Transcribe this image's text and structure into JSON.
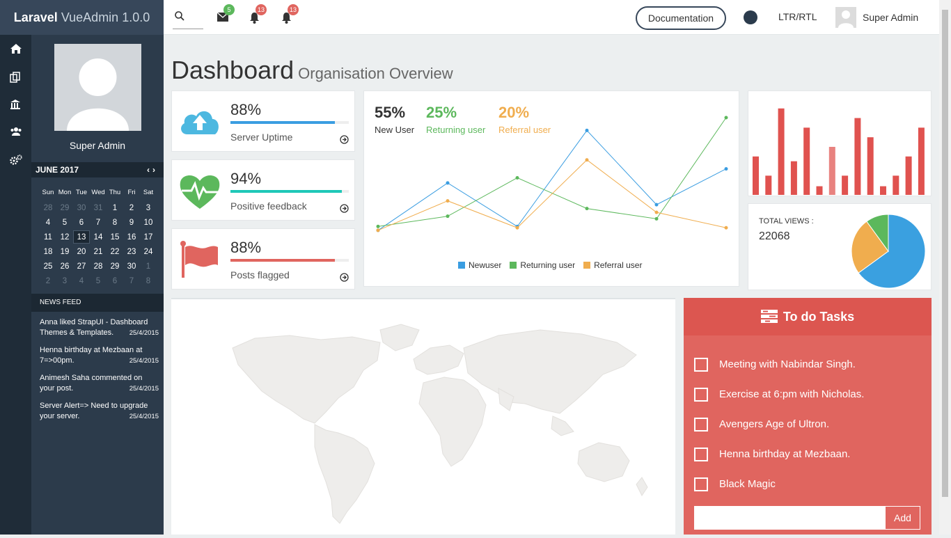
{
  "brand": {
    "strong": "Laravel",
    "rest": " VueAdmin 1.0.0"
  },
  "topbar": {
    "messages_badge": "5",
    "notifications_badge": "13",
    "alerts_badge": "13",
    "documentation_label": "Documentation",
    "direction_label": "LTR/RTL",
    "user_name": "Super Admin",
    "colors": {
      "green": "#5cb85c",
      "red": "#e0655f"
    }
  },
  "iconbar": [
    "home-icon",
    "copy-icon",
    "bank-icon",
    "users-icon",
    "gears-icon"
  ],
  "sidebar": {
    "profile_name": "Super Admin",
    "calendar": {
      "month": "JUNE 2017",
      "days_of_week": [
        "Sun",
        "Mon",
        "Tue",
        "Wed",
        "Thu",
        "Fri",
        "Sat"
      ],
      "weeks": [
        [
          "28",
          "29",
          "30",
          "31",
          "1",
          "2",
          "3"
        ],
        [
          "4",
          "5",
          "6",
          "7",
          "8",
          "9",
          "10"
        ],
        [
          "11",
          "12",
          "13",
          "14",
          "15",
          "16",
          "17"
        ],
        [
          "18",
          "19",
          "20",
          "21",
          "22",
          "23",
          "24"
        ],
        [
          "25",
          "26",
          "27",
          "28",
          "29",
          "30",
          "1"
        ],
        [
          "2",
          "3",
          "4",
          "5",
          "6",
          "7",
          "8"
        ]
      ],
      "today": "13"
    },
    "news_feed": {
      "title": "NEWS FEED",
      "items": [
        {
          "text": "Anna liked StrapUI - Dashboard Themes & Templates.",
          "date": "25/4/2015"
        },
        {
          "text": "Henna birthday at Mezbaan at 7=>00pm.",
          "date": "25/4/2015"
        },
        {
          "text": "Animesh Saha commented on your post.",
          "date": "25/4/2015"
        },
        {
          "text": "Server Alert=> Need to upgrade your server.",
          "date": "25/4/2015"
        }
      ]
    }
  },
  "page": {
    "title": "Dashboard",
    "subtitle": "Organisation Overview"
  },
  "stats": [
    {
      "value": "88%",
      "label": "Server Uptime",
      "progress": 0.88,
      "color": "#3a9de1",
      "icon": "cloud-upload-icon"
    },
    {
      "value": "94%",
      "label": "Positive feedback",
      "progress": 0.94,
      "color": "#1fc8b8",
      "icon": "heart-pulse-icon"
    },
    {
      "value": "88%",
      "label": "Posts flagged",
      "progress": 0.88,
      "color": "#e0655f",
      "icon": "flag-icon"
    }
  ],
  "line_summary": [
    {
      "value": "55%",
      "label": "New User",
      "color": "#333333"
    },
    {
      "value": "25%",
      "label": "Returning user",
      "color": "#5cb85c"
    },
    {
      "value": "20%",
      "label": "Referral user",
      "color": "#f0ad4e"
    }
  ],
  "chart_data": [
    {
      "type": "line",
      "x": [
        1,
        2,
        3,
        4,
        5,
        6
      ],
      "ylim": [
        0,
        100
      ],
      "series": [
        {
          "name": "Newuser",
          "color": "#3a9de1",
          "values": [
            12,
            49,
            15,
            90,
            32,
            60
          ]
        },
        {
          "name": "Returning user",
          "color": "#5cb85c",
          "values": [
            15,
            23,
            53,
            29,
            21,
            100
          ]
        },
        {
          "name": "Referral user",
          "color": "#f0ad4e",
          "values": [
            12,
            35,
            14,
            67,
            26,
            14
          ]
        }
      ],
      "legend": "bottom"
    },
    {
      "type": "bar",
      "values": [
        40,
        20,
        90,
        35,
        70,
        9,
        50,
        20,
        80,
        60,
        9,
        20,
        40,
        70
      ],
      "highlight_index": 6,
      "color": "#e0524f",
      "highlight_color": "#e8827f",
      "ylim": [
        0,
        100
      ]
    },
    {
      "type": "pie",
      "title": "TOTAL VIEWS :",
      "total": "22068",
      "slices": [
        {
          "value": 65,
          "color": "#3aa0e0"
        },
        {
          "value": 25,
          "color": "#f0ad4e"
        },
        {
          "value": 10,
          "color": "#5cb85c"
        }
      ]
    }
  ],
  "todo": {
    "title": "To do Tasks",
    "items": [
      "Meeting with Nabindar Singh.",
      "Exercise at 6:pm with Nicholas.",
      "Avengers Age of Ultron.",
      "Henna birthday at Mezbaan.",
      "Black Magic"
    ],
    "input_value": "",
    "add_label": "Add"
  }
}
